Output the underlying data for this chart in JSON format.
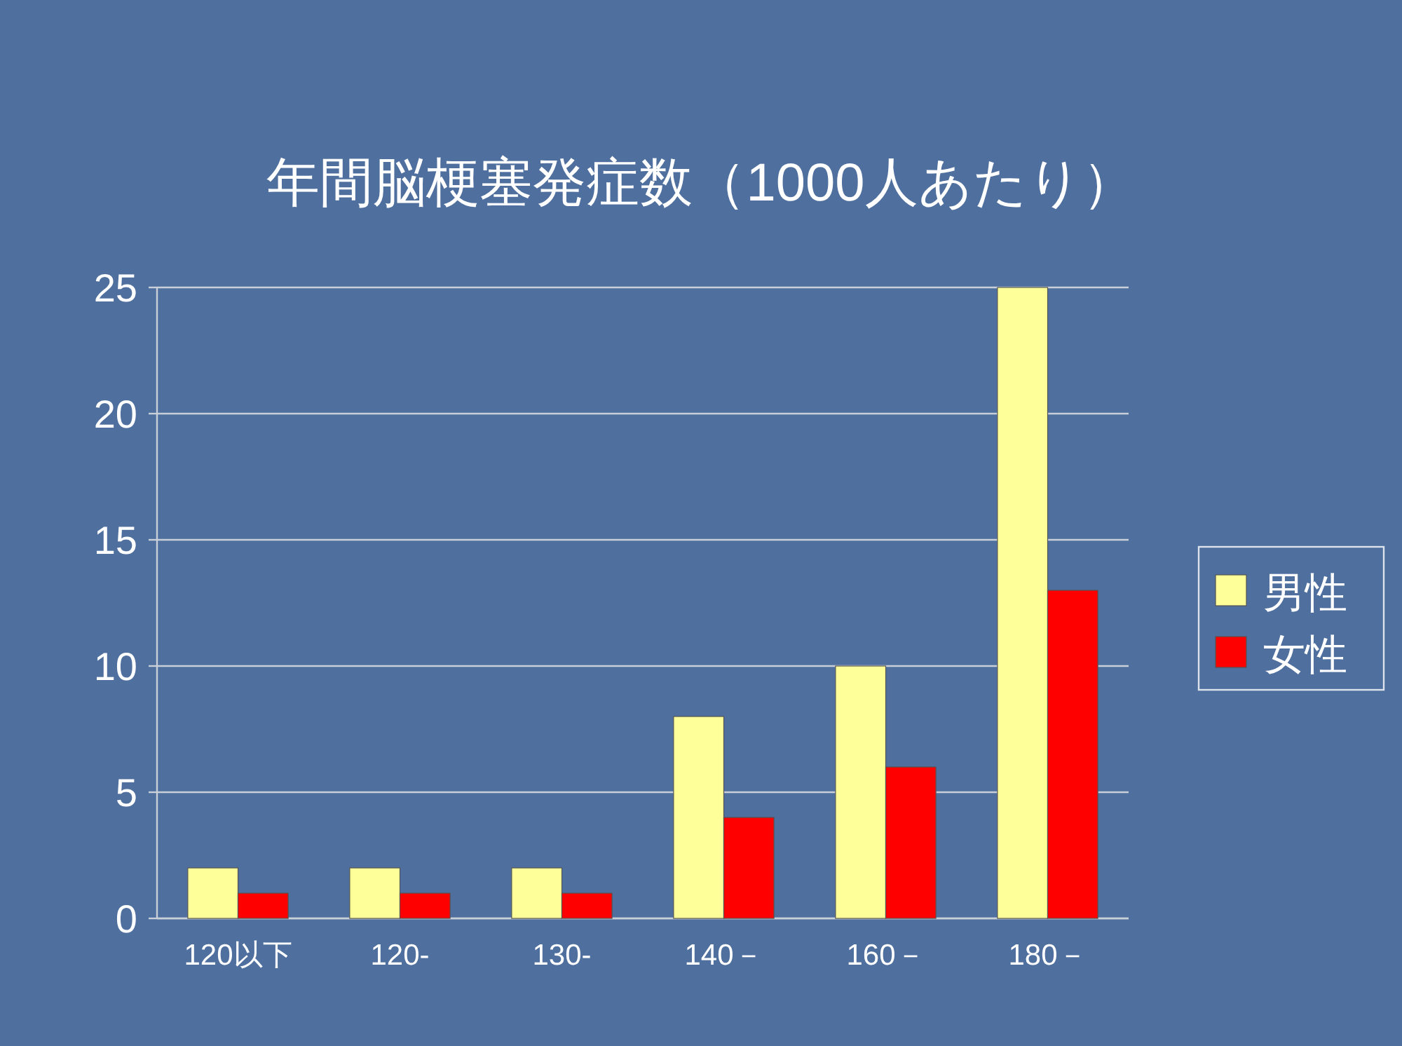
{
  "chart_data": {
    "type": "bar",
    "title": "年間脳梗塞発症数（1000人あたり）",
    "categories": [
      "120以下",
      "120-",
      "130-",
      "140－",
      "160－",
      "180－"
    ],
    "series": [
      {
        "name": "男性",
        "color": "#ffff99",
        "values": [
          2,
          2,
          2,
          8,
          10,
          25
        ]
      },
      {
        "name": "女性",
        "color": "#ff0000",
        "values": [
          1,
          1,
          1,
          4,
          6,
          13
        ]
      }
    ],
    "ylim": [
      0,
      25
    ],
    "yticks": [
      0,
      5,
      10,
      15,
      20,
      25
    ],
    "grid": "y",
    "legend": "right"
  }
}
